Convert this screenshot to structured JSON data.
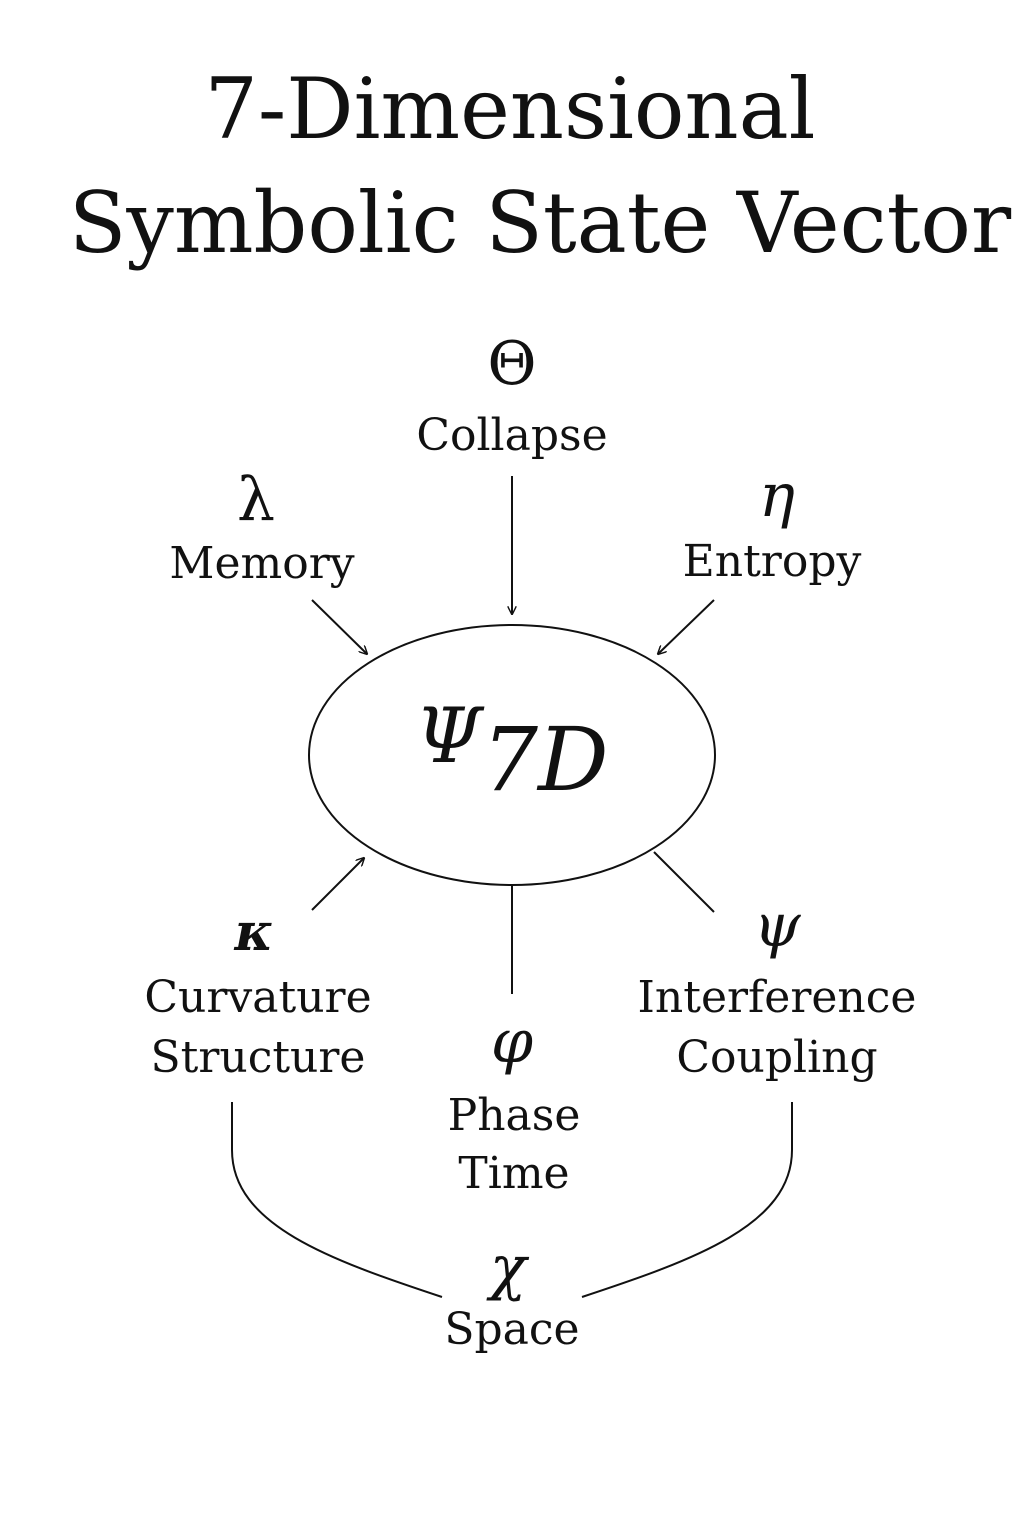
{
  "title": {
    "line1": "7-Dimensional",
    "line2": "Symbolic State Vector"
  },
  "center": {
    "symbol": "Ψ",
    "subscript": "7D"
  },
  "nodes": {
    "collapse": {
      "symbol": "Θ",
      "label": "Collapse"
    },
    "memory": {
      "symbol": "λ",
      "label": "Memory"
    },
    "entropy": {
      "symbol": "η",
      "label": "Entropy"
    },
    "curvature": {
      "symbol": "κ",
      "label_line1": "Curvature",
      "label_line2": "Structure"
    },
    "phase": {
      "symbol": "φ",
      "label_line1": "Phase",
      "label_line2": "Time"
    },
    "interference": {
      "symbol": "ψ",
      "label_line1": "Interference",
      "label_line2": "Coupling"
    },
    "space": {
      "symbol": "χ",
      "label": "Space"
    }
  }
}
